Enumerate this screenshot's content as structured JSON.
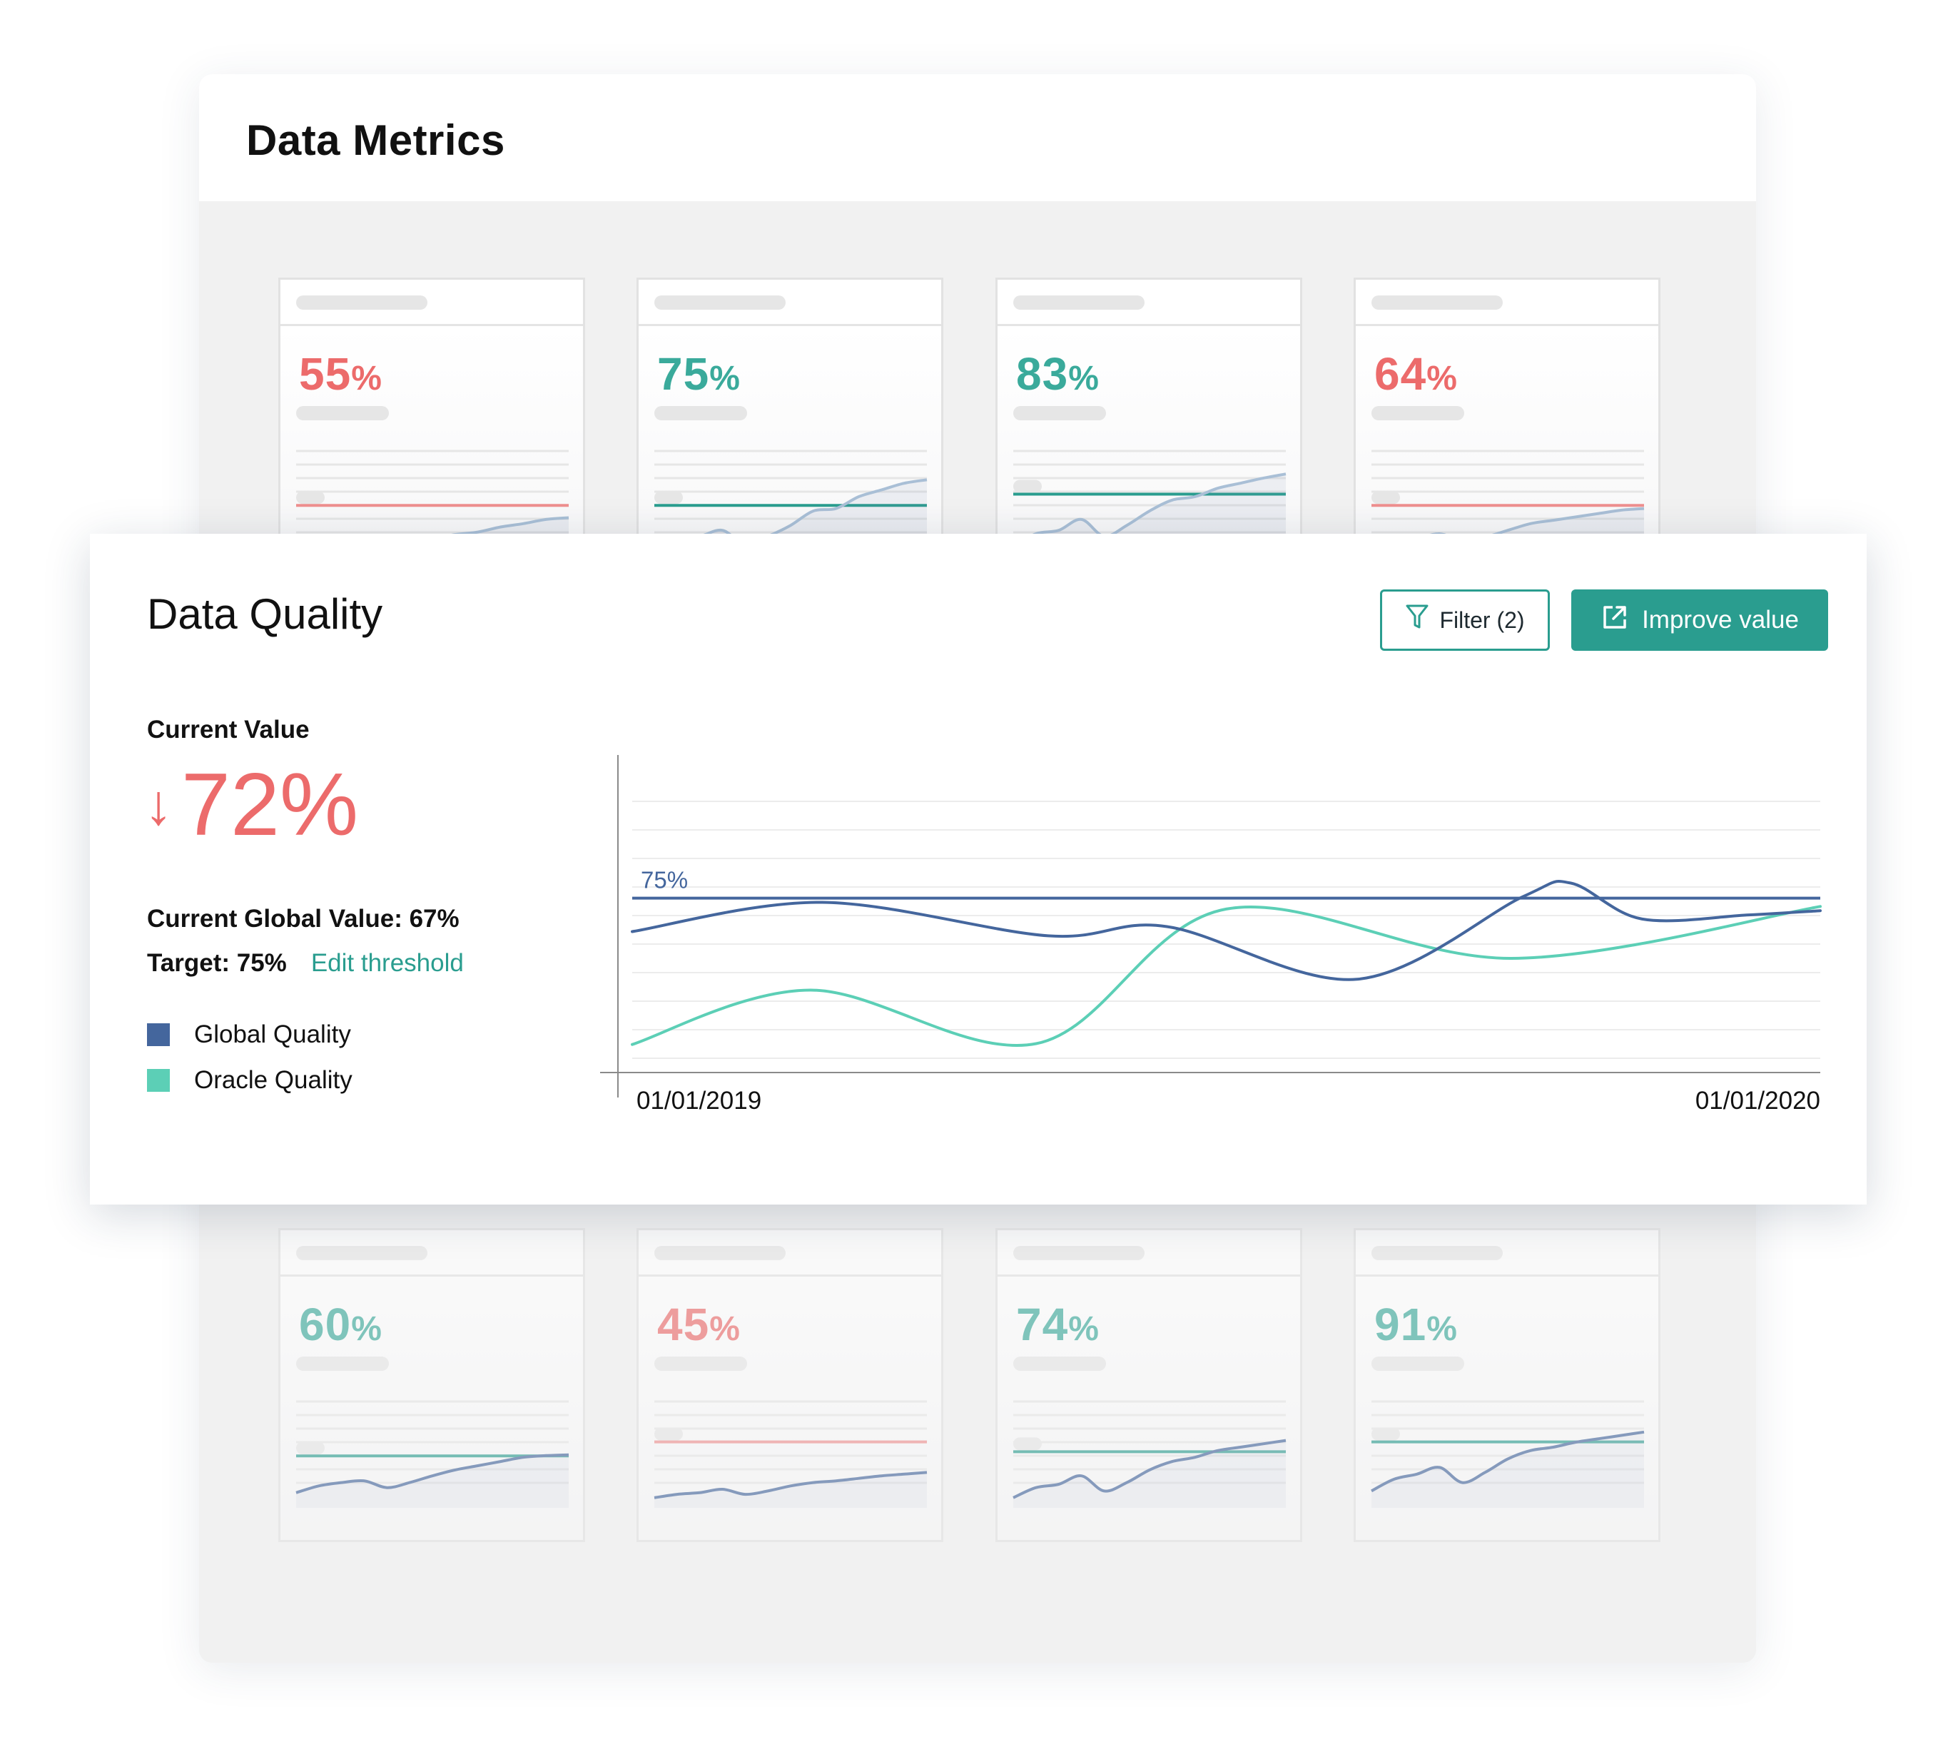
{
  "background_window": {
    "title": "Data Metrics"
  },
  "metric_cards": [
    {
      "value": "55",
      "unit": "%",
      "status": "below",
      "threshold": 0.62,
      "trend": [
        0.08,
        0.12,
        0.14,
        0.1,
        0.12,
        0.18,
        0.22,
        0.27,
        0.3,
        0.36,
        0.4,
        0.45,
        0.47
      ]
    },
    {
      "value": "75",
      "unit": "%",
      "status": "above",
      "threshold": 0.62,
      "trend": [
        0.1,
        0.22,
        0.25,
        0.32,
        0.15,
        0.25,
        0.38,
        0.55,
        0.58,
        0.72,
        0.8,
        0.88,
        0.92
      ]
    },
    {
      "value": "83",
      "unit": "%",
      "status": "above",
      "threshold": 0.78,
      "trend": [
        0.12,
        0.28,
        0.32,
        0.45,
        0.25,
        0.38,
        0.55,
        0.68,
        0.72,
        0.82,
        0.88,
        0.94,
        0.99
      ]
    },
    {
      "value": "64",
      "unit": "%",
      "status": "below",
      "threshold": 0.62,
      "trend": [
        0.12,
        0.2,
        0.22,
        0.28,
        0.2,
        0.24,
        0.32,
        0.4,
        0.44,
        0.48,
        0.52,
        0.56,
        0.58
      ]
    },
    {
      "value": "60",
      "unit": "%",
      "status": "above",
      "threshold": 0.62,
      "trend": [
        0.18,
        0.26,
        0.3,
        0.32,
        0.24,
        0.3,
        0.38,
        0.45,
        0.5,
        0.55,
        0.6,
        0.62,
        0.63
      ]
    },
    {
      "value": "45",
      "unit": "%",
      "status": "below",
      "threshold": 0.82,
      "trend": [
        0.12,
        0.16,
        0.18,
        0.22,
        0.16,
        0.2,
        0.26,
        0.3,
        0.32,
        0.35,
        0.38,
        0.4,
        0.42
      ]
    },
    {
      "value": "74",
      "unit": "%",
      "status": "above",
      "threshold": 0.68,
      "trend": [
        0.12,
        0.24,
        0.28,
        0.38,
        0.2,
        0.3,
        0.45,
        0.55,
        0.6,
        0.68,
        0.72,
        0.76,
        0.8
      ]
    },
    {
      "value": "91",
      "unit": "%",
      "status": "above",
      "threshold": 0.82,
      "trend": [
        0.2,
        0.34,
        0.4,
        0.48,
        0.3,
        0.42,
        0.58,
        0.68,
        0.72,
        0.78,
        0.82,
        0.86,
        0.9
      ]
    }
  ],
  "data_quality": {
    "title": "Data Quality",
    "filter_label": "Filter (2)",
    "improve_label": "Improve value",
    "current_value_label": "Current Value",
    "trend_arrow": "↓",
    "current_value": "72%",
    "global_value_text": "Current Global Value: 67%",
    "target_text": "Target: 75%",
    "edit_threshold_label": "Edit threshold",
    "legend": [
      {
        "label": "Global Quality",
        "color": "#44669d"
      },
      {
        "label": "Oracle Quality",
        "color": "#5ccfb6"
      }
    ]
  },
  "icons": {
    "filter": "filter-funnel-icon",
    "improve": "external-link-icon"
  },
  "colors": {
    "accent": "#2a9d8f",
    "negative": "#ec6b6b",
    "global": "#44669d",
    "oracle": "#5ccfb6",
    "positive_card": "#3aaa9b"
  },
  "chart_data": {
    "type": "line",
    "x_range": [
      "01/01/2019",
      "01/01/2020"
    ],
    "x_tick_labels": [
      "01/01/2019",
      "01/01/2020"
    ],
    "ylim": [
      55,
      87
    ],
    "threshold": {
      "label": "75%",
      "value": 75
    },
    "series": [
      {
        "name": "Global Quality",
        "color": "#44669d",
        "x": [
          0,
          0.16,
          0.35,
          0.45,
          0.61,
          0.75,
          0.79,
          0.85,
          0.94,
          1.0
        ],
        "y": [
          71,
          74.5,
          70.5,
          71.6,
          65.3,
          75.2,
          76.8,
          72.5,
          73.0,
          73.5
        ]
      },
      {
        "name": "Oracle Quality",
        "color": "#5ccfb6",
        "x": [
          0,
          0.15,
          0.34,
          0.5,
          0.74,
          1.0
        ],
        "y": [
          57.5,
          64.0,
          57.6,
          73.7,
          67.8,
          74.0
        ]
      }
    ]
  }
}
